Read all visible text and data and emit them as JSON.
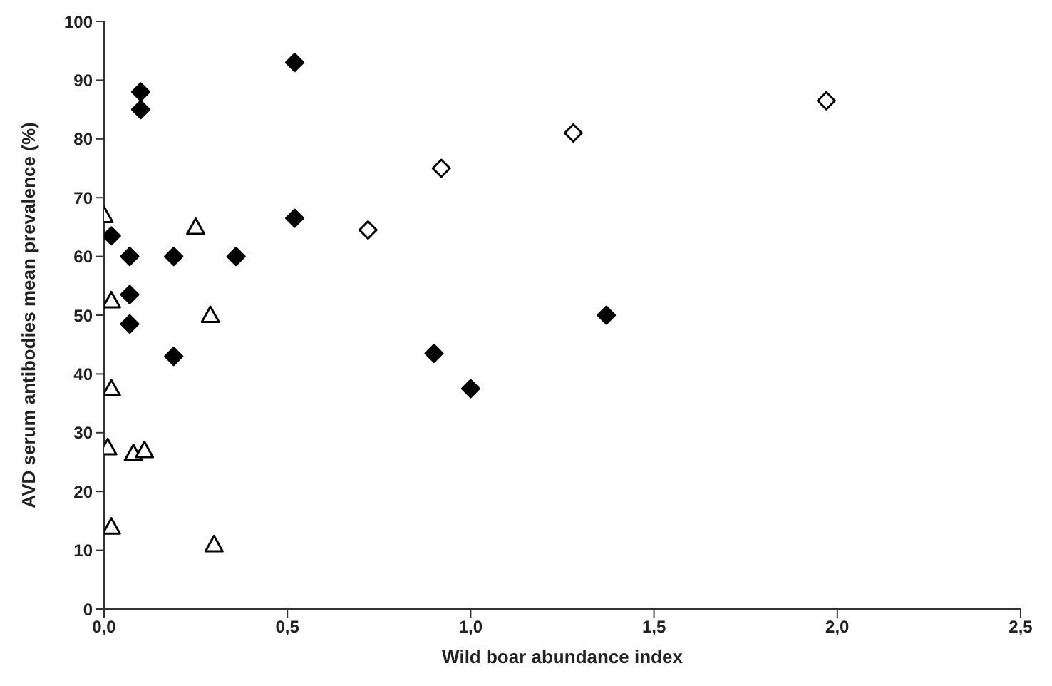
{
  "chart_data": {
    "type": "scatter",
    "xlabel": "Wild boar abundance index",
    "ylabel": "AVD serum antibodies mean prevalence (%)",
    "xlim": [
      0,
      2.5
    ],
    "ylim": [
      0,
      100
    ],
    "xticks": [
      {
        "value": 0,
        "label": "0,0"
      },
      {
        "value": 0.5,
        "label": "0,5"
      },
      {
        "value": 1,
        "label": "1,0"
      },
      {
        "value": 1.5,
        "label": "1,5"
      },
      {
        "value": 2,
        "label": "2,0"
      },
      {
        "value": 2.5,
        "label": "2,5"
      }
    ],
    "yticks": [
      0,
      10,
      20,
      30,
      40,
      50,
      60,
      70,
      80,
      90,
      100
    ],
    "grid": false,
    "legend": false,
    "series": [
      {
        "color": "#000000",
        "marker": "diamond",
        "x": [
          0.02,
          0.07,
          0.07,
          0.07,
          0.1,
          0.1,
          0.19,
          0.19,
          0.36,
          0.52,
          0.52,
          0.9,
          1.0,
          1.37
        ],
        "values": [
          63.5,
          60,
          53.5,
          48.5,
          88,
          85,
          60,
          43,
          60,
          93,
          66.5,
          43.5,
          37.5,
          50
        ]
      },
      {
        "color": "#ffffff",
        "marker": "diamond",
        "x": [
          0.72,
          0.92,
          1.28,
          1.97
        ],
        "values": [
          64.5,
          75,
          81,
          86.5
        ]
      },
      {
        "color": "#ffffff",
        "marker": "triangle",
        "x": [
          0.0,
          0.02,
          0.02,
          0.01,
          0.08,
          0.11,
          0.02,
          0.25,
          0.29,
          0.3
        ],
        "values": [
          67,
          52.5,
          37.5,
          27.5,
          26.5,
          27,
          14,
          65,
          50,
          11
        ]
      }
    ]
  }
}
